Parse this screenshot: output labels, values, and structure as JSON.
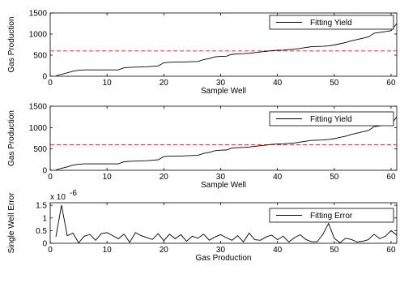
{
  "chart_data": [
    {
      "type": "line",
      "xlabel": "Sample Well",
      "ylabel": "Gas Production",
      "xlim": [
        0,
        61
      ],
      "ylim": [
        0,
        1500
      ],
      "xticks": [
        0,
        10,
        20,
        30,
        40,
        50,
        60
      ],
      "yticks": [
        0,
        500,
        1000,
        1500
      ],
      "legend": "top-right",
      "series": [
        {
          "name": "Fitting Yield",
          "color": "#000000",
          "x": [
            1,
            2,
            3,
            4,
            5,
            6,
            7,
            8,
            9,
            10,
            11,
            12,
            13,
            14,
            15,
            16,
            17,
            18,
            19,
            20,
            21,
            22,
            23,
            24,
            25,
            26,
            27,
            28,
            29,
            30,
            31,
            32,
            33,
            34,
            35,
            36,
            37,
            38,
            39,
            40,
            41,
            42,
            43,
            44,
            45,
            46,
            47,
            48,
            49,
            50,
            51,
            52,
            53,
            54,
            55,
            56,
            57,
            58,
            59,
            60,
            61
          ],
          "y": [
            10,
            45,
            80,
            120,
            140,
            150,
            150,
            150,
            150,
            150,
            150,
            150,
            200,
            210,
            215,
            220,
            225,
            235,
            245,
            320,
            330,
            335,
            335,
            340,
            345,
            350,
            395,
            420,
            460,
            470,
            475,
            520,
            530,
            535,
            545,
            560,
            575,
            590,
            605,
            615,
            620,
            630,
            640,
            660,
            680,
            700,
            705,
            710,
            720,
            740,
            770,
            800,
            840,
            870,
            900,
            930,
            1020,
            1040,
            1060,
            1080,
            1250
          ]
        }
      ],
      "reference_line": {
        "y": 600,
        "color": "#d62728",
        "style": "dashed"
      }
    },
    {
      "type": "line",
      "xlabel": "Sample Well",
      "ylabel": "Gas Production",
      "xlim": [
        0,
        61
      ],
      "ylim": [
        0,
        1500
      ],
      "xticks": [
        0,
        10,
        20,
        30,
        40,
        50,
        60
      ],
      "yticks": [
        0,
        500,
        1000,
        1500
      ],
      "legend": "top-right",
      "series": [
        {
          "name": "Fitting Yield",
          "color": "#000000",
          "x": [
            1,
            2,
            3,
            4,
            5,
            6,
            7,
            8,
            9,
            10,
            11,
            12,
            13,
            14,
            15,
            16,
            17,
            18,
            19,
            20,
            21,
            22,
            23,
            24,
            25,
            26,
            27,
            28,
            29,
            30,
            31,
            32,
            33,
            34,
            35,
            36,
            37,
            38,
            39,
            40,
            41,
            42,
            43,
            44,
            45,
            46,
            47,
            48,
            49,
            50,
            51,
            52,
            53,
            54,
            55,
            56,
            57,
            58,
            59,
            60,
            61
          ],
          "y": [
            10,
            45,
            80,
            120,
            140,
            150,
            150,
            150,
            150,
            150,
            150,
            150,
            200,
            210,
            215,
            220,
            225,
            235,
            245,
            320,
            330,
            335,
            335,
            340,
            345,
            350,
            395,
            420,
            460,
            470,
            475,
            520,
            530,
            535,
            545,
            560,
            575,
            590,
            605,
            615,
            620,
            630,
            640,
            660,
            680,
            700,
            705,
            710,
            720,
            740,
            770,
            800,
            840,
            870,
            900,
            930,
            1020,
            1040,
            1060,
            1080,
            1250
          ]
        }
      ],
      "reference_line": {
        "y": 600,
        "color": "#d62728",
        "style": "dashed"
      }
    },
    {
      "type": "line",
      "xlabel": "Gas Production",
      "ylabel": "Single Well Error",
      "exponent_label": "x 10",
      "exponent_power": "-6",
      "xlim": [
        0,
        61
      ],
      "ylim": [
        0,
        1.6
      ],
      "xticks": [
        0,
        10,
        20,
        30,
        40,
        50,
        60
      ],
      "yticks": [
        0,
        0.5,
        1,
        1.5
      ],
      "ytick_labels": [
        "0",
        "0.5",
        "1",
        "1.5"
      ],
      "legend": "top-right",
      "series": [
        {
          "name": "Fitting Error",
          "color": "#000000",
          "x": [
            1,
            2,
            3,
            4,
            5,
            6,
            7,
            8,
            9,
            10,
            11,
            12,
            13,
            14,
            15,
            16,
            17,
            18,
            19,
            20,
            21,
            22,
            23,
            24,
            25,
            26,
            27,
            28,
            29,
            30,
            31,
            32,
            33,
            34,
            35,
            36,
            37,
            38,
            39,
            40,
            41,
            42,
            43,
            44,
            45,
            46,
            47,
            48,
            49,
            50,
            51,
            52,
            53,
            54,
            55,
            56,
            57,
            58,
            59,
            60,
            61
          ],
          "y": [
            0.25,
            1.5,
            0.3,
            0.4,
            0.02,
            0.28,
            0.35,
            0.12,
            0.38,
            0.42,
            0.3,
            0.18,
            0.36,
            0.04,
            0.42,
            0.3,
            0.22,
            0.15,
            0.38,
            0.1,
            0.36,
            0.18,
            0.34,
            0.08,
            0.28,
            0.2,
            0.36,
            0.12,
            0.25,
            0.34,
            0.22,
            0.12,
            0.3,
            0.05,
            0.4,
            0.14,
            0.12,
            0.25,
            0.32,
            0.14,
            0.28,
            0.05,
            0.22,
            0.34,
            0.15,
            0.06,
            0.06,
            0.36,
            0.78,
            0.2,
            0.02,
            0.2,
            0.15,
            0.05,
            0.08,
            0.14,
            0.36,
            0.18,
            0.28,
            0.5,
            0.32
          ]
        }
      ]
    }
  ]
}
